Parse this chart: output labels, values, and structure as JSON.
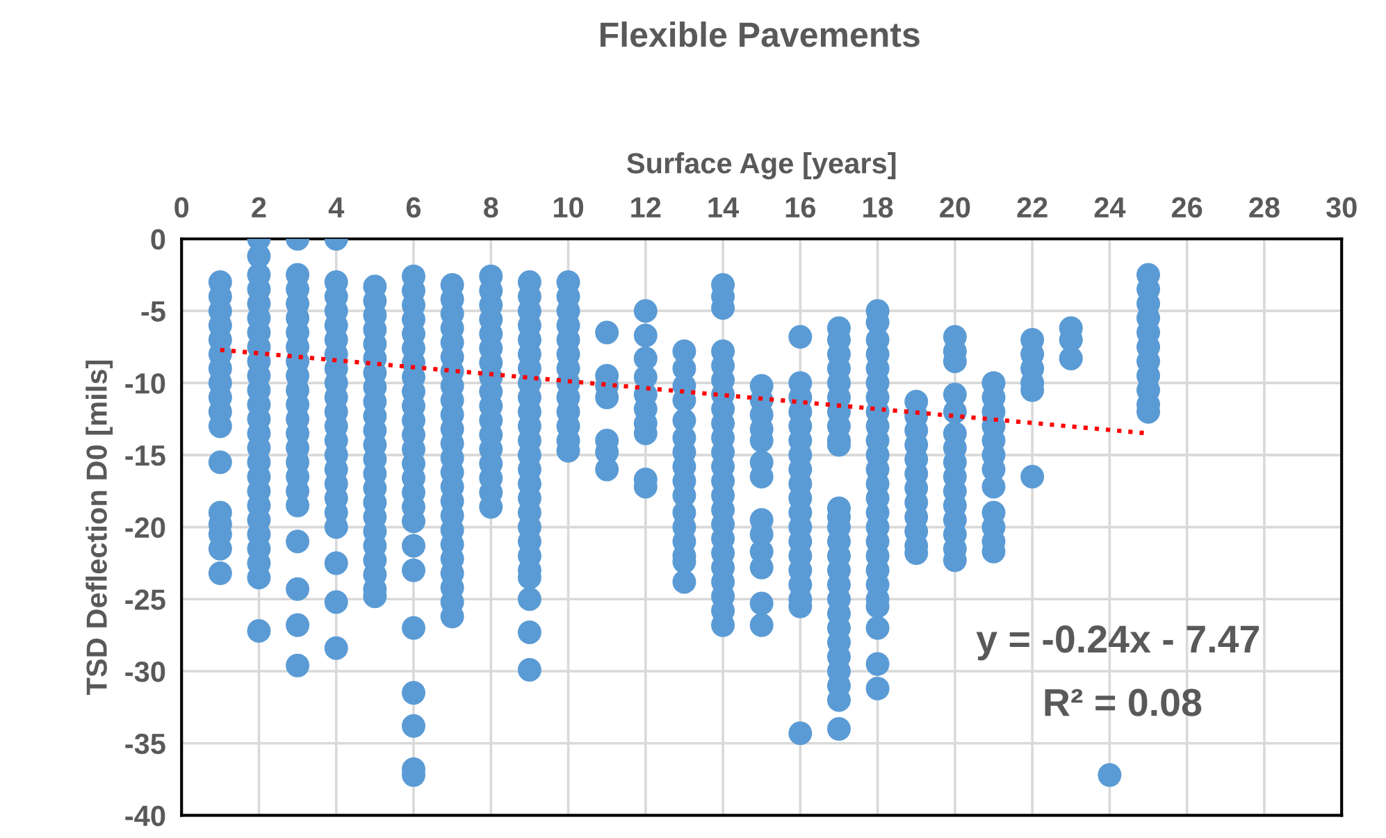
{
  "chart_data": {
    "type": "scatter",
    "title": "Flexible Pavements",
    "xlabel": "Surface Age [years]",
    "ylabel": "TSD Deflection D0 [mils]",
    "annotations": [
      "y = -0.24x - 7.47",
      "R² = 0.08"
    ],
    "xlim": [
      0,
      30
    ],
    "xticks": [
      0,
      2,
      4,
      6,
      8,
      10,
      12,
      14,
      16,
      18,
      20,
      22,
      24,
      26,
      28,
      30
    ],
    "ylim": [
      -40,
      0
    ],
    "yticks": [
      -40,
      -35,
      -30,
      -25,
      -20,
      -15,
      -10,
      -5,
      0
    ],
    "grid": true,
    "legend": false,
    "marker": "circle",
    "series": [
      {
        "color": "#5b9bd5",
        "x": [
          1,
          1,
          1,
          1,
          1,
          1,
          1,
          1,
          1,
          1,
          1,
          1,
          1,
          1,
          1,
          1,
          1,
          2,
          2,
          2,
          2,
          2,
          2,
          2,
          2,
          2,
          2,
          2,
          2,
          2,
          2,
          2,
          2,
          2,
          2,
          2,
          2,
          2,
          2,
          2,
          2,
          2,
          3,
          3,
          3,
          3,
          3,
          3,
          3,
          3,
          3,
          3,
          3,
          3,
          3,
          3,
          3,
          3,
          3,
          3,
          3,
          3,
          3,
          3,
          4,
          4,
          4,
          4,
          4,
          4,
          4,
          4,
          4,
          4,
          4,
          4,
          4,
          4,
          4,
          4,
          4,
          4,
          4,
          4,
          4,
          4,
          5,
          5,
          5,
          5,
          5,
          5,
          5,
          5,
          5,
          5,
          5,
          5,
          5,
          5,
          5,
          5,
          5,
          5,
          5,
          5,
          5,
          5,
          5,
          6,
          6,
          6,
          6,
          6,
          6,
          6,
          6,
          6,
          6,
          6,
          6,
          6,
          6,
          6,
          6,
          6,
          6,
          6,
          6,
          6,
          6,
          6,
          6,
          6,
          7,
          7,
          7,
          7,
          7,
          7,
          7,
          7,
          7,
          7,
          7,
          7,
          7,
          7,
          7,
          7,
          7,
          7,
          7,
          7,
          7,
          7,
          7,
          7,
          8,
          8,
          8,
          8,
          8,
          8,
          8,
          8,
          8,
          8,
          8,
          8,
          8,
          8,
          8,
          8,
          8,
          9,
          9,
          9,
          9,
          9,
          9,
          9,
          9,
          9,
          9,
          9,
          9,
          9,
          9,
          9,
          9,
          9,
          9,
          9,
          9,
          9,
          9,
          9,
          9,
          9,
          10,
          10,
          10,
          10,
          10,
          10,
          10,
          10,
          10,
          10,
          10,
          10,
          10,
          11,
          11,
          11,
          11,
          11,
          11,
          11,
          12,
          12,
          12,
          12,
          12,
          12,
          12,
          12,
          12,
          12,
          13,
          13,
          13,
          13,
          13,
          13,
          13,
          13,
          13,
          13,
          13,
          13,
          13,
          13,
          13,
          13,
          14,
          14,
          14,
          14,
          14,
          14,
          14,
          14,
          14,
          14,
          14,
          14,
          14,
          14,
          14,
          14,
          14,
          14,
          14,
          14,
          14,
          14,
          14,
          15,
          15,
          15,
          15,
          15,
          15,
          15,
          15,
          15,
          15,
          15,
          15,
          15,
          16,
          16,
          16,
          16,
          16,
          16,
          16,
          16,
          16,
          16,
          16,
          16,
          16,
          16,
          16,
          16,
          16,
          16,
          16,
          17,
          17,
          17,
          17,
          17,
          17,
          17,
          17,
          17,
          17,
          17,
          17,
          17,
          17,
          17,
          17,
          17,
          17,
          17,
          17,
          17,
          17,
          17,
          17,
          17,
          17,
          18,
          18,
          18,
          18,
          18,
          18,
          18,
          18,
          18,
          18,
          18,
          18,
          18,
          18,
          18,
          18,
          18,
          18,
          18,
          18,
          18,
          18,
          18,
          18,
          18,
          19,
          19,
          19,
          19,
          19,
          19,
          19,
          19,
          19,
          19,
          19,
          19,
          20,
          20,
          20,
          20,
          20,
          20,
          20,
          20,
          20,
          20,
          20,
          20,
          20,
          20,
          20,
          21,
          21,
          21,
          21,
          21,
          21,
          21,
          21,
          21,
          21,
          21,
          21,
          22,
          22,
          22,
          22,
          22,
          22,
          23,
          23,
          23,
          24,
          25,
          25,
          25,
          25,
          25,
          25,
          25,
          25,
          25,
          25,
          25
        ],
        "values": [
          -3,
          -4,
          -5,
          -6,
          -7,
          -8,
          -9,
          -10,
          -11,
          -12,
          -13,
          -15.5,
          -19,
          -19.8,
          -20.5,
          -21.5,
          -23.2,
          0,
          -1.2,
          -2.5,
          -3.5,
          -4.5,
          -5.5,
          -6.5,
          -7.5,
          -8.5,
          -9.5,
          -10.5,
          -11.5,
          -12.5,
          -13.5,
          -14.5,
          -15.5,
          -16.5,
          -17.5,
          -18.5,
          -19.5,
          -20.5,
          -21.5,
          -22.5,
          -23.5,
          -27.2,
          0,
          -2.5,
          -3.5,
          -4.5,
          -5.5,
          -6.5,
          -7.5,
          -8.5,
          -9.5,
          -10.5,
          -11.5,
          -12.5,
          -13.5,
          -14.5,
          -15.5,
          -16.5,
          -17.5,
          -18.5,
          -21,
          -24.3,
          -26.8,
          -29.6,
          0,
          -3,
          -4,
          -5,
          -6,
          -7,
          -8,
          -9,
          -10,
          -11,
          -12,
          -13,
          -14,
          -15,
          -16,
          -17,
          -18,
          -19,
          -20,
          -22.5,
          -25.2,
          -28.4,
          -3.3,
          -4.3,
          -5.3,
          -6.3,
          -7.3,
          -8.3,
          -9.3,
          -10.3,
          -11.3,
          -12.3,
          -13.3,
          -14.3,
          -15.3,
          -16.3,
          -17.3,
          -18.3,
          -19.3,
          -20.3,
          -21.3,
          -22.3,
          -23.3,
          -24.3,
          -24.8,
          -2.6,
          -3.6,
          -4.6,
          -5.6,
          -6.6,
          -7.6,
          -8.6,
          -9.6,
          -10.6,
          -11.6,
          -12.6,
          -13.6,
          -14.6,
          -15.6,
          -16.6,
          -17.6,
          -18.6,
          -19.6,
          -21.3,
          -23,
          -27,
          -31.5,
          -33.8,
          -36.8,
          -37.2,
          -3.2,
          -4.2,
          -5.2,
          -6.2,
          -7.2,
          -8.2,
          -9.2,
          -10.2,
          -11.2,
          -12.2,
          -13.2,
          -14.2,
          -15.2,
          -16.2,
          -17.2,
          -18.2,
          -19.2,
          -20.2,
          -21.2,
          -22.2,
          -23.2,
          -24.2,
          -25.2,
          -26.2,
          -2.6,
          -3.6,
          -4.6,
          -5.6,
          -6.6,
          -7.6,
          -8.6,
          -9.6,
          -10.6,
          -11.6,
          -12.6,
          -13.6,
          -14.6,
          -15.6,
          -16.6,
          -17.6,
          -18.6,
          -3,
          -4,
          -5,
          -6,
          -7,
          -8,
          -9,
          -10,
          -11,
          -12,
          -13,
          -14,
          -15,
          -16,
          -17,
          -18,
          -19,
          -20,
          -21,
          -22,
          -23,
          -23.5,
          -25,
          -27.3,
          -29.9,
          -3,
          -4,
          -5,
          -6,
          -7,
          -8,
          -9,
          -10,
          -11,
          -12,
          -13,
          -14,
          -14.7,
          -6.5,
          -9.5,
          -10.2,
          -11,
          -14,
          -14.8,
          -16,
          -5,
          -6.7,
          -8.3,
          -9.6,
          -10.8,
          -11.8,
          -12.8,
          -13.5,
          -16.7,
          -17.2,
          -7.8,
          -9,
          -10.2,
          -11.2,
          -12.6,
          -13.8,
          -14.8,
          -15.8,
          -16.8,
          -17.8,
          -19,
          -20,
          -21,
          -22,
          -22.4,
          -23.8,
          -3.2,
          -4,
          -4.8,
          -7.8,
          -8.8,
          -9.8,
          -10.8,
          -11.8,
          -12.8,
          -13.8,
          -14.8,
          -15.8,
          -16.8,
          -17.8,
          -18.8,
          -19.8,
          -20.8,
          -21.8,
          -22.8,
          -23.8,
          -24.8,
          -25.8,
          -26.8,
          -10.2,
          -11.2,
          -12.2,
          -13.2,
          -14,
          -15.5,
          -16.5,
          -19.5,
          -20.5,
          -21.7,
          -22.8,
          -25.3,
          -26.8,
          -6.8,
          -10,
          -11,
          -12,
          -13,
          -14,
          -15,
          -16,
          -17,
          -18,
          -19,
          -20,
          -21,
          -22,
          -23,
          -24,
          -25,
          -25.5,
          -34.3,
          -6.2,
          -7,
          -8,
          -9,
          -10,
          -11,
          -12,
          -13,
          -14,
          -14.3,
          -18.7,
          -19.3,
          -20,
          -21,
          -22,
          -23,
          -24,
          -25,
          -26,
          -27,
          -28,
          -29,
          -30,
          -31,
          -32,
          -34,
          -5,
          -5.8,
          -7,
          -8,
          -9,
          -10,
          -11,
          -12,
          -13,
          -14,
          -15,
          -16,
          -17,
          -18,
          -19,
          -20,
          -21,
          -22,
          -23,
          -24,
          -25,
          -25.5,
          -27,
          -29.5,
          -31.2,
          -11.3,
          -12.3,
          -13.3,
          -14.3,
          -15.3,
          -16.3,
          -17.3,
          -18.3,
          -19.3,
          -20.3,
          -21.3,
          -21.8,
          -6.8,
          -7.8,
          -8.5,
          -10.8,
          -12,
          -13.5,
          -14.5,
          -15.5,
          -16.5,
          -17.5,
          -18.5,
          -19.5,
          -20.5,
          -21.5,
          -22.3,
          -10,
          -11,
          -12,
          -13,
          -14,
          -15,
          -16,
          -17.2,
          -19,
          -20,
          -21,
          -21.7,
          -7,
          -8,
          -9,
          -10,
          -10.5,
          -16.5,
          -6.2,
          -7,
          -8.3,
          -37.2,
          -2.5,
          -3.5,
          -4.5,
          -5.5,
          -6.5,
          -7.5,
          -8.5,
          -9.5,
          -10.5,
          -11.5,
          -12
        ]
      },
      {
        "type": "line",
        "color": "#ff0000",
        "line_style": "dotted",
        "marker": "none",
        "x": [
          1,
          25
        ],
        "values": [
          -7.7,
          -13.5
        ]
      }
    ]
  }
}
